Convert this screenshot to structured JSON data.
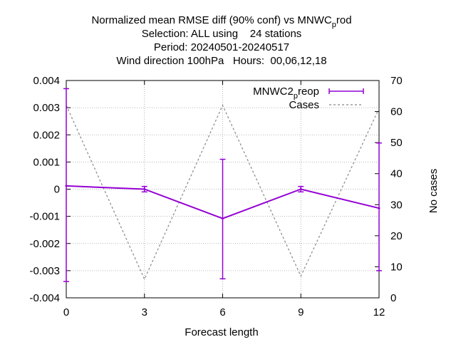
{
  "chart_data": {
    "type": "line",
    "title_lines": [
      "Normalized mean RMSE diff (90% conf) vs MNWC_prod",
      "Selection: ALL using    24 stations",
      "Period: 20240501-20240517",
      "Wind direction 100hPa   Hours:  00,06,12,18"
    ],
    "xlabel": "Forecast length",
    "ylabel": "",
    "y2label": "No cases",
    "x": [
      0,
      3,
      6,
      9,
      12
    ],
    "xlim": [
      0,
      12
    ],
    "ylim": [
      -0.004,
      0.004
    ],
    "y2lim": [
      0,
      70
    ],
    "xticks": [
      "0",
      "3",
      "6",
      "9",
      "12"
    ],
    "yticks": [
      "-0.004",
      "-0.003",
      "-0.002",
      "-0.001",
      "0",
      "0.001",
      "0.002",
      "0.003",
      "0.004"
    ],
    "y2ticks": [
      "0",
      "10",
      "20",
      "30",
      "40",
      "50",
      "60",
      "70"
    ],
    "grid": true,
    "legend_position": "top-right",
    "series": [
      {
        "name": "MNWC2_preop",
        "axis": "y1",
        "color": "#9400d3",
        "values": [
          0.00012,
          0.0,
          -0.00108,
          0.0,
          -0.0007
        ],
        "error_low": [
          -0.0034,
          -0.0001,
          -0.0033,
          -0.0001,
          -0.003
        ],
        "error_high": [
          0.0037,
          0.0001,
          0.0011,
          0.0001,
          0.0017
        ]
      },
      {
        "name": "Cases",
        "axis": "y2",
        "color": "#888888",
        "values": [
          62,
          6,
          62,
          7,
          61
        ]
      }
    ]
  }
}
